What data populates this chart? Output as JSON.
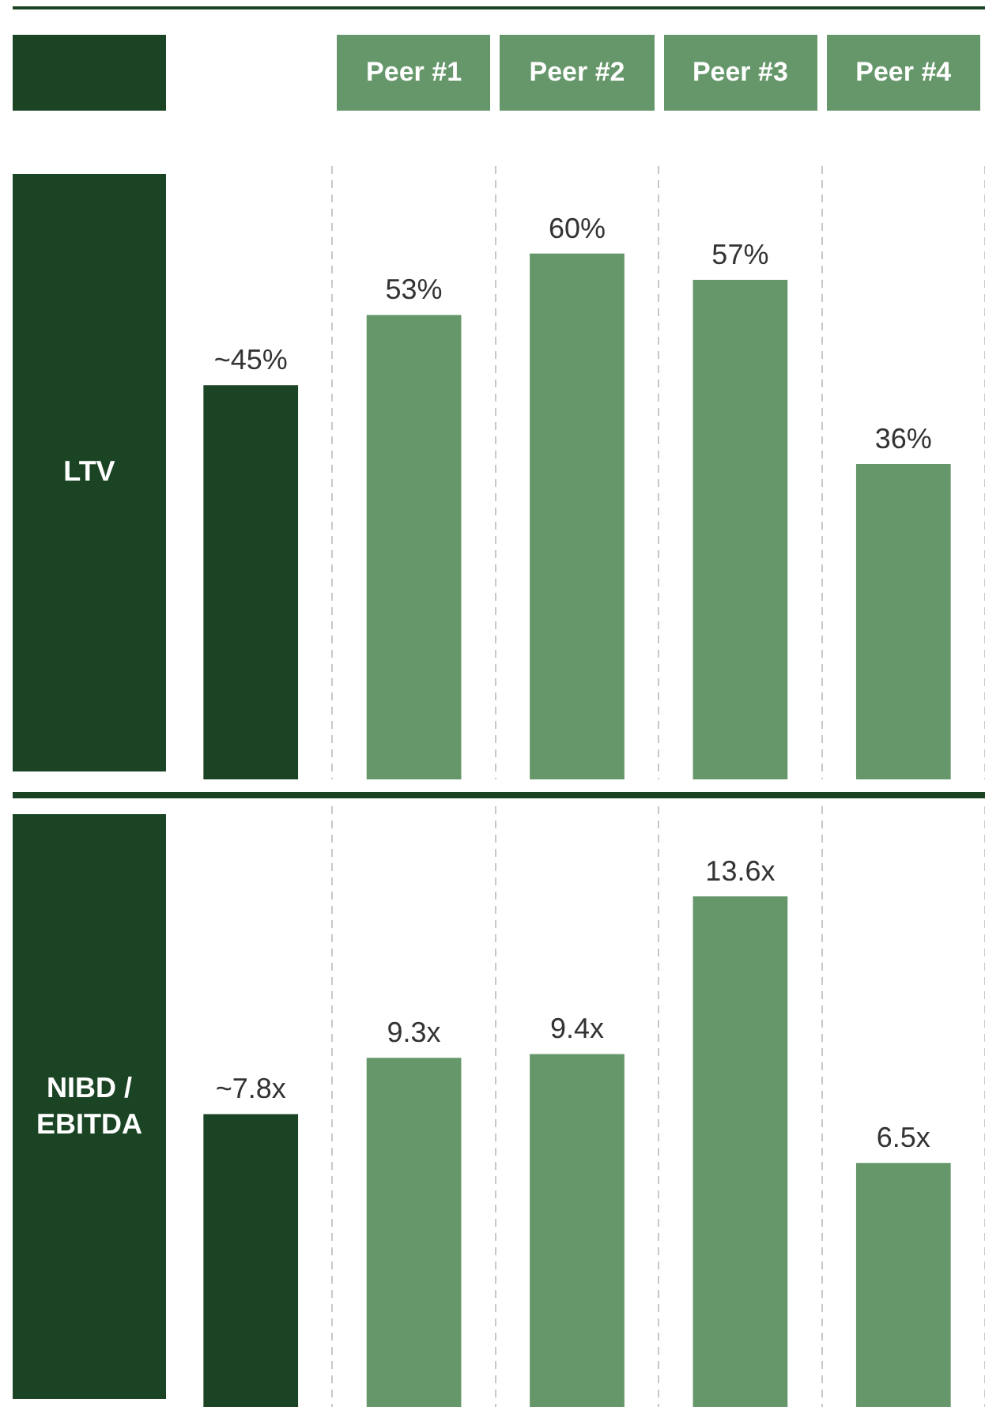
{
  "chart_data": [
    {
      "type": "bar",
      "ylabel": "LTV",
      "categories": [
        null,
        "Peer #1",
        "Peer #2",
        "Peer #3",
        "Peer #4"
      ],
      "values": [
        45,
        53,
        60,
        57,
        36
      ],
      "colors": [
        "#1b4425",
        "#66976a",
        "#66976a",
        "#66976a",
        "#66976a"
      ],
      "value_labels": [
        "~45%",
        "53%",
        "60%",
        "57%",
        "36%"
      ],
      "grid": "x",
      "tick_labels": "x"
    },
    {
      "type": "bar",
      "ylabel": "NIBD / EBITDA",
      "categories": [
        null,
        null,
        null,
        null,
        null
      ],
      "values": [
        7.8,
        9.3,
        9.4,
        13.6,
        6.5
      ],
      "colors": [
        "#1b4425",
        "#66976a",
        "#66976a",
        "#66976a",
        "#66976a"
      ],
      "value_labels": [
        "~7.8x",
        "9.3x",
        "9.4x",
        "13.6x",
        "6.5x"
      ],
      "grid": "x",
      "tick_labels": false
    }
  ]
}
